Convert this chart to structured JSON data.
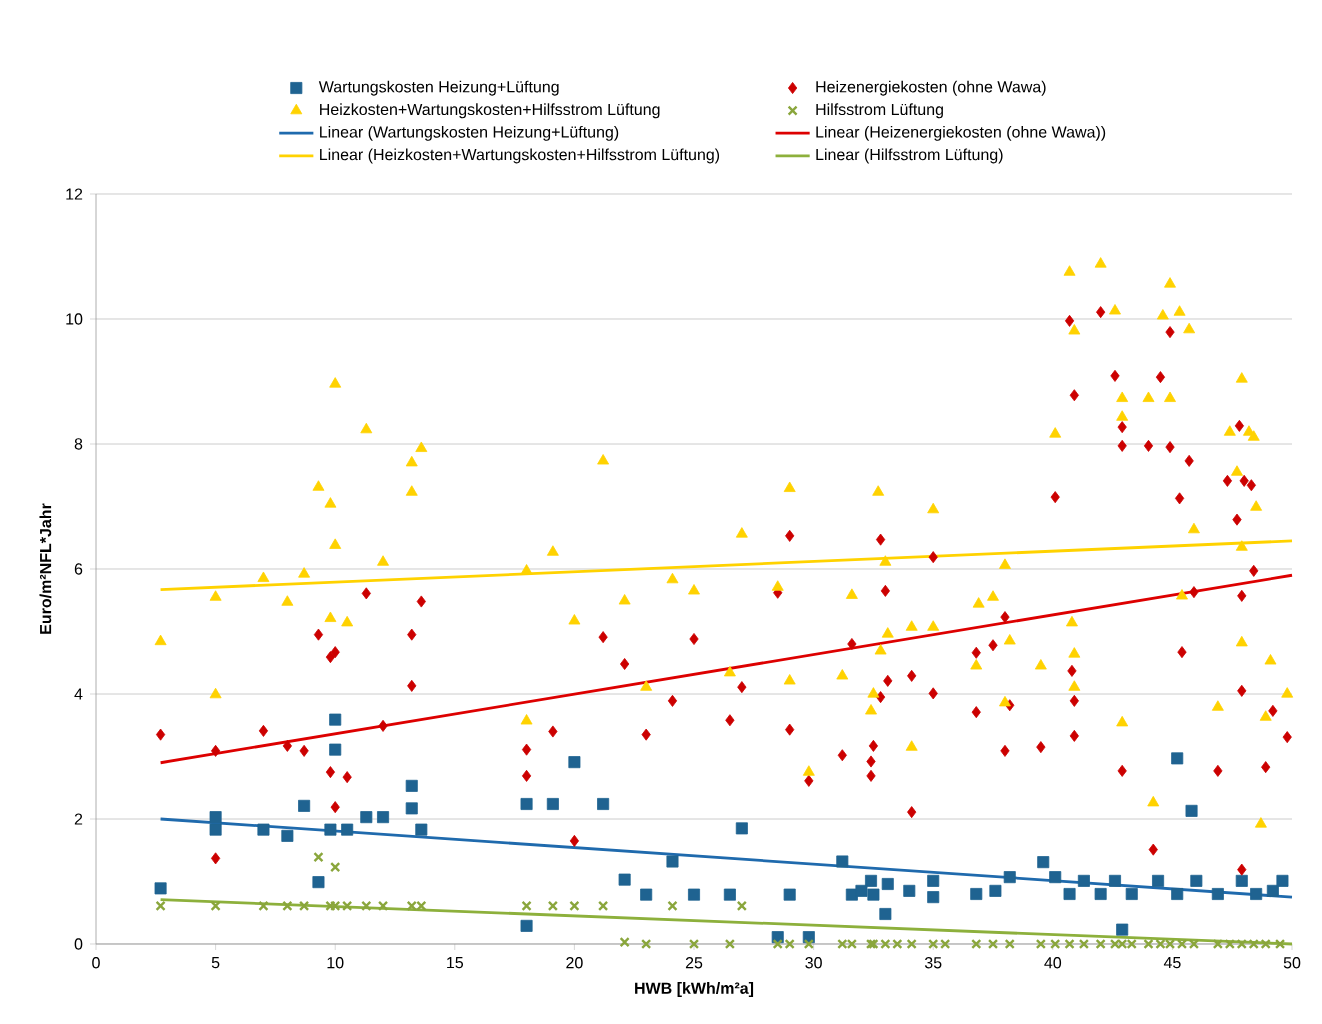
{
  "chart_data": {
    "type": "scatter",
    "xlabel": "HWB [kWh/m²a]",
    "ylabel": "Euro/m²NFL*Jahr",
    "xlim": [
      0,
      50
    ],
    "ylim": [
      0,
      12
    ],
    "xticks": [
      0,
      5,
      10,
      15,
      20,
      25,
      30,
      35,
      40,
      45,
      50
    ],
    "yticks": [
      0,
      2,
      4,
      6,
      8,
      10,
      12
    ],
    "grid": "y",
    "legend": "top",
    "series": [
      {
        "name": "Wartungskosten Heizung+Lüftung",
        "marker": "square",
        "color": "#1f6391",
        "x": [
          2.7,
          5.0,
          5.0,
          7.0,
          8.0,
          8.7,
          9.3,
          10.0,
          10.0,
          9.8,
          10.5,
          11.3,
          12.0,
          13.2,
          13.2,
          13.6,
          18.0,
          18.0,
          19.1,
          20.0,
          21.2,
          22.1,
          23.0,
          24.1,
          25.0,
          26.5,
          27.0,
          28.5,
          29.0,
          29.8,
          31.2,
          31.6,
          32.4,
          32.5,
          32.0,
          33.0,
          33.1,
          34.0,
          35.0,
          35.0,
          36.8,
          37.6,
          38.2,
          39.6,
          40.1,
          40.7,
          41.3,
          42.0,
          42.6,
          42.9,
          43.3,
          44.4,
          45.2,
          45.8,
          45.2,
          46.0,
          46.9,
          47.9,
          48.5,
          49.2,
          49.6
        ],
        "values": [
          0.89,
          2.03,
          1.83,
          1.83,
          1.73,
          2.21,
          0.99,
          3.59,
          3.11,
          1.83,
          1.83,
          2.03,
          2.03,
          2.53,
          2.17,
          1.83,
          0.29,
          2.24,
          2.24,
          2.91,
          2.24,
          1.03,
          0.79,
          1.32,
          0.79,
          0.79,
          1.85,
          0.11,
          0.79,
          0.11,
          1.32,
          0.79,
          1.01,
          0.79,
          0.85,
          0.48,
          0.96,
          0.85,
          1.01,
          0.75,
          0.8,
          0.85,
          1.07,
          1.31,
          1.07,
          0.8,
          1.01,
          0.8,
          1.01,
          0.23,
          0.8,
          1.01,
          2.97,
          2.13,
          0.8,
          1.01,
          0.8,
          1.01,
          0.8,
          0.85,
          1.01
        ]
      },
      {
        "name": "Heizenergiekosten (ohne Wawa)",
        "marker": "diamond",
        "color": "#cc0000",
        "x": [
          2.7,
          5.0,
          5.0,
          7.0,
          8.0,
          8.7,
          9.3,
          9.8,
          10.0,
          9.8,
          10.0,
          10.5,
          11.3,
          12.0,
          13.2,
          13.2,
          13.6,
          18.0,
          18.0,
          19.1,
          20.0,
          21.2,
          22.1,
          23.0,
          24.1,
          25.0,
          26.5,
          27.0,
          28.5,
          29.0,
          29.0,
          29.8,
          31.2,
          31.6,
          32.4,
          32.4,
          32.5,
          32.8,
          33.0,
          33.1,
          32.8,
          34.1,
          34.1,
          35.0,
          35.0,
          36.8,
          36.8,
          37.5,
          38.0,
          38.2,
          38.0,
          39.5,
          40.1,
          40.7,
          40.9,
          40.8,
          40.9,
          40.9,
          42.0,
          42.6,
          42.9,
          42.9,
          42.9,
          44.0,
          44.2,
          44.5,
          44.9,
          44.9,
          45.3,
          45.4,
          45.7,
          45.9,
          46.9,
          47.3,
          47.7,
          47.8,
          47.9,
          47.9,
          48.0,
          48.3,
          48.4,
          47.9,
          48.9,
          49.2,
          49.8
        ],
        "values": [
          3.35,
          3.09,
          1.37,
          3.41,
          3.17,
          3.09,
          4.95,
          4.59,
          4.67,
          2.75,
          2.19,
          2.67,
          5.61,
          3.49,
          4.95,
          4.13,
          5.48,
          3.11,
          2.69,
          3.4,
          1.65,
          4.91,
          4.48,
          3.35,
          3.89,
          4.88,
          3.58,
          4.11,
          5.62,
          6.53,
          3.43,
          2.61,
          3.02,
          4.8,
          2.92,
          2.69,
          3.17,
          6.47,
          5.65,
          4.21,
          3.95,
          4.29,
          2.11,
          4.01,
          6.19,
          3.71,
          4.66,
          4.78,
          5.23,
          3.82,
          3.09,
          3.15,
          7.15,
          9.97,
          8.78,
          4.37,
          3.89,
          3.33,
          10.11,
          9.09,
          8.27,
          7.97,
          2.77,
          7.97,
          1.51,
          9.07,
          9.79,
          7.95,
          7.13,
          4.67,
          7.73,
          5.63,
          2.77,
          7.41,
          6.79,
          8.29,
          5.57,
          4.05,
          7.41,
          7.34,
          5.97,
          1.19,
          2.83,
          3.73,
          3.31
        ]
      },
      {
        "name": "Heizkosten+Wartungskosten+Hilfsstrom Lüftung",
        "marker": "triangle",
        "color": "#ffd200",
        "x": [
          2.7,
          5.0,
          5.0,
          7.0,
          8.0,
          8.7,
          9.3,
          9.8,
          10.0,
          10.0,
          9.8,
          10.5,
          11.3,
          12.0,
          13.2,
          13.2,
          13.6,
          18.0,
          18.0,
          19.1,
          20.0,
          21.2,
          22.1,
          23.0,
          24.1,
          25.0,
          26.5,
          27.0,
          28.5,
          29.0,
          29.0,
          29.8,
          31.2,
          31.6,
          32.4,
          32.5,
          32.7,
          33.0,
          33.1,
          32.8,
          34.1,
          34.1,
          35.0,
          35.0,
          36.8,
          36.9,
          37.5,
          38.0,
          38.2,
          38.0,
          39.5,
          40.1,
          40.7,
          40.9,
          40.8,
          40.9,
          40.9,
          42.0,
          42.6,
          42.9,
          42.9,
          42.9,
          44.0,
          44.2,
          44.6,
          44.9,
          44.9,
          45.3,
          45.4,
          45.7,
          45.9,
          46.9,
          47.4,
          47.7,
          47.9,
          47.9,
          47.9,
          48.2,
          48.4,
          48.5,
          48.7,
          48.9,
          49.1,
          49.8
        ],
        "values": [
          4.84,
          5.55,
          3.99,
          5.85,
          5.47,
          5.92,
          7.31,
          7.04,
          8.96,
          6.38,
          5.21,
          5.14,
          8.23,
          6.11,
          7.7,
          7.23,
          7.93,
          3.57,
          5.97,
          6.27,
          5.17,
          7.73,
          5.49,
          4.11,
          5.83,
          5.65,
          4.34,
          6.56,
          5.71,
          7.29,
          4.21,
          2.75,
          4.29,
          5.58,
          3.73,
          4.0,
          7.23,
          6.11,
          4.96,
          4.69,
          5.07,
          3.15,
          5.07,
          6.95,
          4.45,
          5.44,
          5.55,
          6.06,
          4.85,
          3.86,
          4.45,
          8.16,
          10.75,
          9.81,
          5.14,
          4.64,
          4.11,
          10.88,
          10.13,
          8.73,
          8.43,
          3.54,
          8.73,
          2.26,
          10.05,
          10.56,
          8.73,
          10.11,
          5.57,
          9.83,
          6.63,
          3.79,
          8.19,
          7.55,
          9.04,
          6.35,
          4.82,
          8.19,
          8.11,
          6.99,
          1.92,
          3.63,
          4.53,
          4.0
        ]
      },
      {
        "name": "Hilfsstrom Lüftung",
        "marker": "cross",
        "color": "#8aa63c",
        "x": [
          2.7,
          5.0,
          7.0,
          8.0,
          8.7,
          9.3,
          10.0,
          9.8,
          10.0,
          10.5,
          11.3,
          12.0,
          13.2,
          13.6,
          18.0,
          19.1,
          20.0,
          21.2,
          22.1,
          23.0,
          24.1,
          25.0,
          26.5,
          27.0,
          28.5,
          29.0,
          29.8,
          31.2,
          31.6,
          32.4,
          32.5,
          33.0,
          33.5,
          34.1,
          35.0,
          35.5,
          36.8,
          37.5,
          38.2,
          39.5,
          40.1,
          40.7,
          41.3,
          42.0,
          42.6,
          42.9,
          43.3,
          44.0,
          44.5,
          44.9,
          45.4,
          45.9,
          46.9,
          47.4,
          47.9,
          48.4,
          48.9,
          49.5
        ],
        "values": [
          0.61,
          0.61,
          0.61,
          0.61,
          0.61,
          1.39,
          1.23,
          0.61,
          0.61,
          0.61,
          0.61,
          0.61,
          0.61,
          0.61,
          0.61,
          0.61,
          0.61,
          0.61,
          0.03,
          0,
          0.61,
          0,
          0,
          0.61,
          0,
          0,
          0,
          0,
          0,
          0,
          0,
          0,
          0,
          0,
          0,
          0,
          0,
          0,
          0,
          0,
          0,
          0,
          0,
          0,
          0,
          0,
          0,
          0,
          0,
          0,
          0,
          0,
          0,
          0,
          0,
          0,
          0,
          0
        ]
      },
      {
        "name": "Linear (Wartungskosten Heizung+Lüftung)",
        "type": "line",
        "marker": "none",
        "color": "#1f6aad",
        "x": [
          2.7,
          50
        ],
        "values": [
          2.0,
          0.75
        ]
      },
      {
        "name": "Linear (Heizenergiekosten (ohne Wawa))",
        "type": "line",
        "marker": "none",
        "color": "#dd0000",
        "x": [
          2.7,
          50
        ],
        "values": [
          2.9,
          5.9
        ]
      },
      {
        "name": "Linear (Heizkosten+Wartungskosten+Hilfsstrom Lüftung)",
        "type": "line",
        "marker": "none",
        "color": "#ffd200",
        "x": [
          2.7,
          50
        ],
        "values": [
          5.67,
          6.45
        ]
      },
      {
        "name": "Linear (Hilfsstrom Lüftung)",
        "type": "line",
        "marker": "none",
        "color": "#8db03c",
        "x": [
          2.7,
          50
        ],
        "values": [
          0.71,
          0.0
        ]
      }
    ]
  }
}
